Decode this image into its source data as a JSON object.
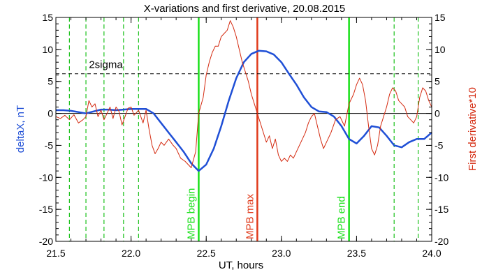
{
  "chart_data": {
    "type": "line",
    "title": "X-variations and first derivative, 20.08.2015",
    "xlabel": "UT, hours",
    "ylabel_left": "deltaX, nT",
    "ylabel_right": "First derivative*10",
    "xlim": [
      21.5,
      24.0
    ],
    "ylim": [
      -20,
      15
    ],
    "x_ticks": [
      21.5,
      22.0,
      22.5,
      23.0,
      23.5,
      24.0
    ],
    "x_tick_labels": [
      "21.5",
      "22.0",
      "22.5",
      "23.0",
      "23.5",
      "24.0"
    ],
    "y_ticks": [
      -20,
      -15,
      -10,
      -5,
      0,
      5,
      10,
      15
    ],
    "y_tick_labels": [
      "-20",
      "-15",
      "-10",
      "-5",
      "0",
      "5",
      "10",
      "15"
    ],
    "colors": {
      "deltaX": "#1f4fd6",
      "derivative": "#d42a10",
      "mpb_begin_end": "#19e019",
      "mpb_max": "#e03a1a",
      "dashed_green": "#19c019"
    },
    "series": [
      {
        "color_key": "deltaX",
        "points": [
          [
            21.5,
            0.5
          ],
          [
            21.55,
            0.5
          ],
          [
            21.6,
            0.4
          ],
          [
            21.65,
            0.2
          ],
          [
            21.7,
            0.0
          ],
          [
            21.75,
            0.3
          ],
          [
            21.8,
            0.6
          ],
          [
            21.85,
            0.6
          ],
          [
            21.9,
            0.5
          ],
          [
            21.95,
            0.6
          ],
          [
            22.0,
            0.7
          ],
          [
            22.05,
            0.7
          ],
          [
            22.1,
            0.7
          ],
          [
            22.15,
            0.0
          ],
          [
            22.2,
            -1.5
          ],
          [
            22.25,
            -3.0
          ],
          [
            22.3,
            -4.5
          ],
          [
            22.35,
            -6.0
          ],
          [
            22.4,
            -7.8
          ],
          [
            22.45,
            -9.0
          ],
          [
            22.5,
            -8.0
          ],
          [
            22.55,
            -5.5
          ],
          [
            22.6,
            -2.0
          ],
          [
            22.65,
            2.0
          ],
          [
            22.7,
            5.5
          ],
          [
            22.75,
            8.0
          ],
          [
            22.8,
            9.3
          ],
          [
            22.85,
            9.8
          ],
          [
            22.9,
            9.7
          ],
          [
            22.95,
            9.2
          ],
          [
            23.0,
            8.0
          ],
          [
            23.05,
            6.2
          ],
          [
            23.1,
            4.5
          ],
          [
            23.15,
            2.5
          ],
          [
            23.2,
            1.0
          ],
          [
            23.25,
            0.3
          ],
          [
            23.3,
            0.2
          ],
          [
            23.35,
            -0.5
          ],
          [
            23.4,
            -2.0
          ],
          [
            23.45,
            -4.0
          ],
          [
            23.5,
            -4.7
          ],
          [
            23.55,
            -3.5
          ],
          [
            23.6,
            -2.0
          ],
          [
            23.65,
            -2.2
          ],
          [
            23.7,
            -3.5
          ],
          [
            23.75,
            -5.0
          ],
          [
            23.8,
            -5.3
          ],
          [
            23.85,
            -4.5
          ],
          [
            23.9,
            -4.0
          ],
          [
            23.95,
            -4.0
          ],
          [
            24.0,
            -3.0
          ]
        ]
      },
      {
        "color_key": "derivative",
        "points": [
          [
            21.5,
            -0.5
          ],
          [
            21.53,
            -0.8
          ],
          [
            21.56,
            -0.3
          ],
          [
            21.59,
            -1.0
          ],
          [
            21.62,
            -0.2
          ],
          [
            21.65,
            -1.5
          ],
          [
            21.68,
            -1.0
          ],
          [
            21.7,
            -0.5
          ],
          [
            21.72,
            2.0
          ],
          [
            21.74,
            1.0
          ],
          [
            21.76,
            1.5
          ],
          [
            21.78,
            -0.5
          ],
          [
            21.8,
            0.5
          ],
          [
            21.82,
            -1.0
          ],
          [
            21.84,
            0.0
          ],
          [
            21.86,
            1.0
          ],
          [
            21.88,
            -0.8
          ],
          [
            21.9,
            1.0
          ],
          [
            21.92,
            0.3
          ],
          [
            21.94,
            -1.8
          ],
          [
            21.96,
            -0.5
          ],
          [
            21.98,
            0.8
          ],
          [
            22.0,
            1.0
          ],
          [
            22.02,
            -0.3
          ],
          [
            22.05,
            0.5
          ],
          [
            22.08,
            -1.5
          ],
          [
            22.1,
            0.5
          ],
          [
            22.12,
            -2.5
          ],
          [
            22.14,
            -5.0
          ],
          [
            22.16,
            -6.3
          ],
          [
            22.18,
            -5.5
          ],
          [
            22.2,
            -4.5
          ],
          [
            22.22,
            -5.0
          ],
          [
            22.25,
            -4.0
          ],
          [
            22.28,
            -5.0
          ],
          [
            22.3,
            -5.5
          ],
          [
            22.33,
            -7.0
          ],
          [
            22.36,
            -7.5
          ],
          [
            22.4,
            -8.5
          ],
          [
            22.43,
            -6.0
          ],
          [
            22.45,
            0.0
          ],
          [
            22.48,
            2.5
          ],
          [
            22.5,
            6.0
          ],
          [
            22.52,
            8.0
          ],
          [
            22.54,
            9.5
          ],
          [
            22.56,
            10.5
          ],
          [
            22.58,
            10.5
          ],
          [
            22.6,
            12.0
          ],
          [
            22.62,
            12.5
          ],
          [
            22.64,
            13.0
          ],
          [
            22.66,
            14.5
          ],
          [
            22.68,
            13.5
          ],
          [
            22.7,
            12.0
          ],
          [
            22.72,
            10.0
          ],
          [
            22.74,
            8.0
          ],
          [
            22.76,
            6.5
          ],
          [
            22.78,
            5.0
          ],
          [
            22.8,
            3.0
          ],
          [
            22.82,
            1.5
          ],
          [
            22.84,
            0.0
          ],
          [
            22.86,
            -1.5
          ],
          [
            22.88,
            -3.0
          ],
          [
            22.9,
            -4.5
          ],
          [
            22.92,
            -3.5
          ],
          [
            22.94,
            -5.5
          ],
          [
            22.96,
            -4.0
          ],
          [
            22.98,
            -6.5
          ],
          [
            23.0,
            -7.5
          ],
          [
            23.02,
            -7.0
          ],
          [
            23.04,
            -7.5
          ],
          [
            23.06,
            -6.5
          ],
          [
            23.08,
            -7.0
          ],
          [
            23.1,
            -6.0
          ],
          [
            23.12,
            -5.0
          ],
          [
            23.14,
            -4.0
          ],
          [
            23.16,
            -3.0
          ],
          [
            23.18,
            -1.5
          ],
          [
            23.2,
            -0.5
          ],
          [
            23.22,
            0.0
          ],
          [
            23.24,
            -2.0
          ],
          [
            23.26,
            -4.0
          ],
          [
            23.28,
            -5.5
          ],
          [
            23.3,
            -4.5
          ],
          [
            23.33,
            -3.0
          ],
          [
            23.36,
            -1.0
          ],
          [
            23.39,
            -0.5
          ],
          [
            23.42,
            -2.0
          ],
          [
            23.45,
            1.5
          ],
          [
            23.48,
            3.0
          ],
          [
            23.5,
            4.5
          ],
          [
            23.52,
            5.5
          ],
          [
            23.54,
            4.5
          ],
          [
            23.56,
            2.0
          ],
          [
            23.58,
            -2.0
          ],
          [
            23.6,
            -5.5
          ],
          [
            23.62,
            -6.5
          ],
          [
            23.64,
            -5.0
          ],
          [
            23.66,
            -2.0
          ],
          [
            23.68,
            -0.5
          ],
          [
            23.7,
            1.0
          ],
          [
            23.72,
            3.0
          ],
          [
            23.74,
            4.0
          ],
          [
            23.76,
            3.5
          ],
          [
            23.78,
            2.0
          ],
          [
            23.8,
            1.5
          ],
          [
            23.82,
            1.0
          ],
          [
            23.84,
            -0.5
          ],
          [
            23.86,
            -1.0
          ],
          [
            23.88,
            -1.5
          ],
          [
            23.9,
            -0.5
          ],
          [
            23.92,
            2.5
          ],
          [
            23.94,
            4.0
          ],
          [
            23.96,
            3.5
          ],
          [
            23.98,
            2.0
          ],
          [
            24.0,
            1.0
          ]
        ]
      }
    ],
    "horizontal_lines": [
      {
        "y": 0,
        "style": "solid",
        "color": "#000000"
      },
      {
        "y": 6.2,
        "style": "dashed",
        "color": "#000000",
        "label": "2sigma",
        "label_x": 21.72
      }
    ],
    "vertical_lines": [
      {
        "x": 21.59,
        "style": "dashed",
        "color_key": "dashed_green"
      },
      {
        "x": 21.7,
        "style": "dashed",
        "color_key": "dashed_green"
      },
      {
        "x": 21.82,
        "style": "dashed",
        "color_key": "dashed_green"
      },
      {
        "x": 21.95,
        "style": "dashed",
        "color_key": "dashed_green"
      },
      {
        "x": 22.05,
        "style": "dashed",
        "color_key": "dashed_green"
      },
      {
        "x": 22.45,
        "style": "solid",
        "color_key": "mpb_begin_end",
        "label": "MPB begin"
      },
      {
        "x": 22.84,
        "style": "solid",
        "color_key": "mpb_max",
        "label": "MPB max"
      },
      {
        "x": 23.45,
        "style": "solid",
        "color_key": "mpb_begin_end",
        "label": "MPB end"
      },
      {
        "x": 23.75,
        "style": "dashed",
        "color_key": "dashed_green"
      },
      {
        "x": 23.91,
        "style": "dashed",
        "color_key": "dashed_green"
      }
    ]
  }
}
